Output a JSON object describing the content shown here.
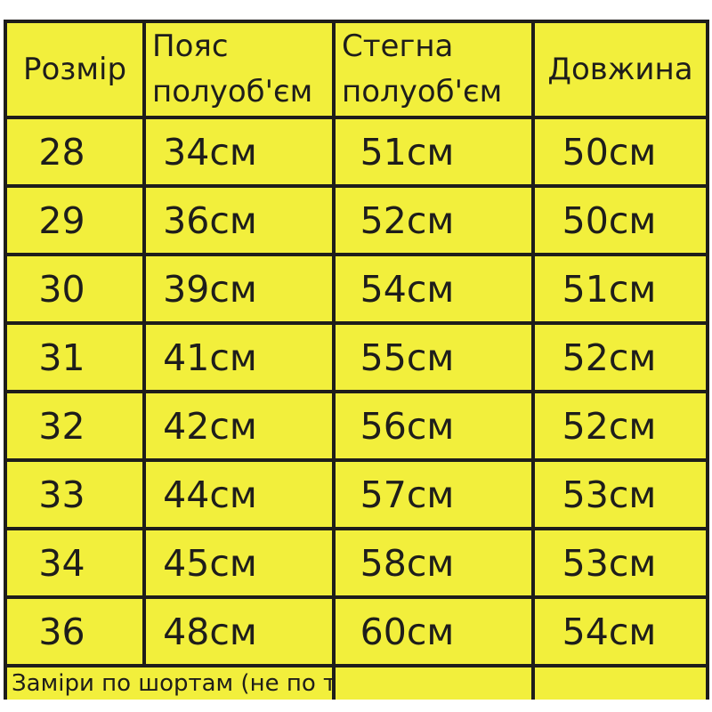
{
  "chart_data": {
    "type": "table",
    "title": "",
    "columns": [
      "Розмір",
      "Пояс полуоб'єм",
      "Стегна полуоб'єм",
      "Довжина"
    ],
    "rows": [
      [
        "28",
        "34см",
        "51см",
        "50см"
      ],
      [
        "29",
        "36см",
        "52см",
        "50см"
      ],
      [
        "30",
        "39см",
        "54см",
        "51см"
      ],
      [
        "31",
        "41см",
        "55см",
        "52см"
      ],
      [
        "32",
        "42см",
        "56см",
        "52см"
      ],
      [
        "33",
        "44см",
        "57см",
        "53см"
      ],
      [
        "34",
        "45см",
        "58см",
        "53см"
      ],
      [
        "36",
        "48см",
        "60см",
        "54см"
      ]
    ],
    "footer_note": "Заміри по шортам (не по тілу)",
    "layout": {
      "grid": "on",
      "header_rows": 1,
      "footer_note_spans_columns": 2,
      "bottom_border": "cut-off"
    }
  },
  "colors": {
    "table_bg": "#f2ef3c",
    "line": "#1e1d1b",
    "text": "#1e1d1b",
    "page_bg": "#ffffff"
  }
}
